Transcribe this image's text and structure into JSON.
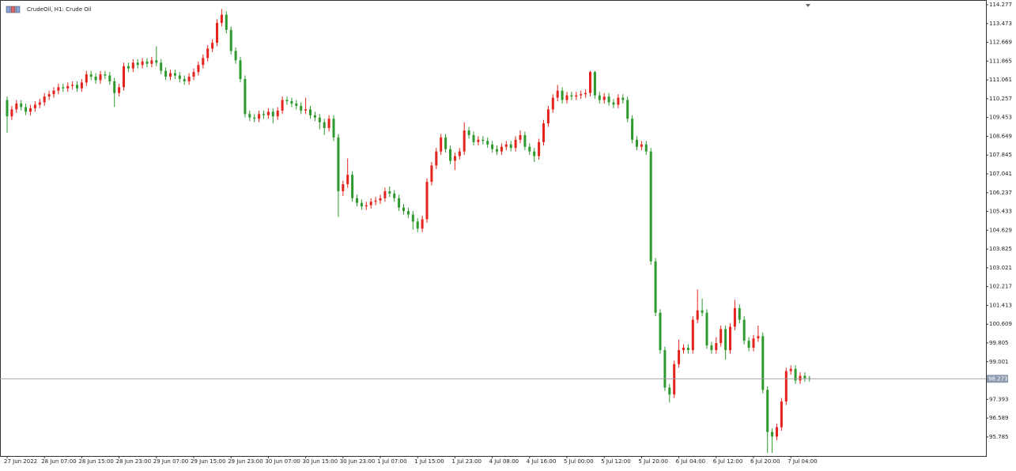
{
  "chart_data": {
    "type": "candlestick",
    "title": "CrudeOil, H1:  Crude Oil",
    "up_color": "#e3231c",
    "down_color": "#2e9a2e",
    "current_price": 98.273,
    "ylim": [
      94.97,
      114.48
    ],
    "yticks": [
      114.277,
      113.473,
      112.669,
      111.865,
      111.061,
      110.257,
      109.453,
      108.649,
      107.845,
      107.041,
      106.237,
      105.433,
      104.629,
      103.825,
      103.021,
      102.217,
      101.413,
      100.609,
      99.805,
      99.001,
      97.393,
      96.589,
      95.785
    ],
    "categories": [
      "27 Jun 2022",
      null,
      null,
      null,
      null,
      null,
      null,
      null,
      "28 Jun 07:00",
      null,
      null,
      null,
      null,
      null,
      null,
      null,
      "28 Jun 15:00",
      null,
      null,
      null,
      null,
      null,
      null,
      null,
      "28 Jun 23:00",
      null,
      null,
      null,
      null,
      null,
      null,
      null,
      "29 Jun 07:00",
      null,
      null,
      null,
      null,
      null,
      null,
      null,
      "29 Jun 15:00",
      null,
      null,
      null,
      null,
      null,
      null,
      null,
      "29 Jun 23:00",
      null,
      null,
      null,
      null,
      null,
      null,
      null,
      "30 Jun 07:00",
      null,
      null,
      null,
      null,
      null,
      null,
      null,
      "30 Jun 15:00",
      null,
      null,
      null,
      null,
      null,
      null,
      null,
      "30 Jun 23:00",
      null,
      null,
      null,
      null,
      null,
      null,
      null,
      "1 Jul 07:00",
      null,
      null,
      null,
      null,
      null,
      null,
      null,
      "1 Jul 15:00",
      null,
      null,
      null,
      null,
      null,
      null,
      null,
      "1 Jul 23:00",
      null,
      null,
      null,
      null,
      null,
      null,
      null,
      "4 Jul 08:00",
      null,
      null,
      null,
      null,
      null,
      null,
      null,
      "4 Jul 16:00",
      null,
      null,
      null,
      null,
      null,
      null,
      null,
      "5 Jul 00:00",
      null,
      null,
      null,
      null,
      null,
      null,
      null,
      "5 Jul 12:00",
      null,
      null,
      null,
      null,
      null,
      null,
      null,
      "5 Jul 20:00",
      null,
      null,
      null,
      null,
      null,
      null,
      null,
      "6 Jul 04:00",
      null,
      null,
      null,
      null,
      null,
      null,
      null,
      "6 Jul 12:00",
      null,
      null,
      null,
      null,
      null,
      null,
      null,
      "6 Jul 20:00",
      null,
      null,
      null,
      null,
      null,
      null,
      null,
      "7 Jul 04:00",
      null,
      null,
      null,
      null
    ],
    "open": [
      110.2,
      109.5,
      109.8,
      110.05,
      109.9,
      109.7,
      109.85,
      110.0,
      110.1,
      110.35,
      110.45,
      110.6,
      110.75,
      110.7,
      110.8,
      110.85,
      110.7,
      110.95,
      111.3,
      111.2,
      111.05,
      111.3,
      111.25,
      111.0,
      110.5,
      110.75,
      111.65,
      111.55,
      111.8,
      111.7,
      111.85,
      111.75,
      111.9,
      111.8,
      111.45,
      111.2,
      111.35,
      111.25,
      111.1,
      111.0,
      111.2,
      111.4,
      111.7,
      112.0,
      112.4,
      112.65,
      113.5,
      113.85,
      113.2,
      112.3,
      111.9,
      111.1,
      109.6,
      109.45,
      109.4,
      109.6,
      109.55,
      109.7,
      109.5,
      109.75,
      110.2,
      110.15,
      110.05,
      109.95,
      109.75,
      109.8,
      109.55,
      109.45,
      109.25,
      109.0,
      109.4,
      108.6,
      106.3,
      106.6,
      107.0,
      106.0,
      105.8,
      105.65,
      105.7,
      105.85,
      105.9,
      106.0,
      106.3,
      106.2,
      106.0,
      105.6,
      105.45,
      105.3,
      105.0,
      104.7,
      105.1,
      106.7,
      107.4,
      108.0,
      108.6,
      108.1,
      107.6,
      107.8,
      108.0,
      108.9,
      108.7,
      108.4,
      108.5,
      108.45,
      108.3,
      108.1,
      108.0,
      108.2,
      108.3,
      108.15,
      108.5,
      108.7,
      108.2,
      108.0,
      107.8,
      108.4,
      109.2,
      109.8,
      110.3,
      110.6,
      110.2,
      110.4,
      110.35,
      110.4,
      110.45,
      110.5,
      111.4,
      110.4,
      110.2,
      110.35,
      110.1,
      110.0,
      110.3,
      110.2,
      109.4,
      108.5,
      108.2,
      108.3,
      108.0,
      103.3,
      101.1,
      99.5,
      97.9,
      97.6,
      98.9,
      99.5,
      99.6,
      99.5,
      100.8,
      101.2,
      101.1,
      99.7,
      99.5,
      99.8,
      100.4,
      99.5,
      100.5,
      101.3,
      100.8,
      99.9,
      99.6,
      100.0,
      100.1,
      97.8,
      96.0,
      95.8,
      96.2,
      97.3,
      98.6,
      98.7,
      98.2,
      98.4,
      98.3
    ],
    "high": [
      110.35,
      109.95,
      110.2,
      110.2,
      110.05,
      110.0,
      110.15,
      110.25,
      110.5,
      110.6,
      110.75,
      110.9,
      110.9,
      110.95,
      111.0,
      111.0,
      111.1,
      111.45,
      111.45,
      111.35,
      111.45,
      111.45,
      111.4,
      111.15,
      110.9,
      111.8,
      111.8,
      111.95,
      111.95,
      112.0,
      112.0,
      112.05,
      112.5,
      111.95,
      111.6,
      111.5,
      111.5,
      111.4,
      111.25,
      111.35,
      111.55,
      111.85,
      112.15,
      112.55,
      112.8,
      113.65,
      114.1,
      114.0,
      113.35,
      112.45,
      112.05,
      111.25,
      109.75,
      109.6,
      109.75,
      109.75,
      109.85,
      109.85,
      109.9,
      110.35,
      110.35,
      110.3,
      110.2,
      110.1,
      110.3,
      109.95,
      109.7,
      109.6,
      109.4,
      109.55,
      109.55,
      108.75,
      106.75,
      107.7,
      107.15,
      106.15,
      105.95,
      105.85,
      106.0,
      106.05,
      106.15,
      106.45,
      106.5,
      106.35,
      106.15,
      105.75,
      105.6,
      105.45,
      105.15,
      105.25,
      106.85,
      107.55,
      108.15,
      108.75,
      108.75,
      108.25,
      107.95,
      108.15,
      109.25,
      109.05,
      108.85,
      108.65,
      108.65,
      108.6,
      108.45,
      108.25,
      108.35,
      108.45,
      108.45,
      108.65,
      108.9,
      108.85,
      108.35,
      108.15,
      108.55,
      109.35,
      109.95,
      110.45,
      110.85,
      110.75,
      110.55,
      110.55,
      110.55,
      110.6,
      110.65,
      111.45,
      111.45,
      110.55,
      110.5,
      110.5,
      110.25,
      110.45,
      110.45,
      110.35,
      109.55,
      108.65,
      108.45,
      108.45,
      108.15,
      103.45,
      101.25,
      99.65,
      98.05,
      99.05,
      99.95,
      99.75,
      99.75,
      100.95,
      102.1,
      101.7,
      101.25,
      99.85,
      100.05,
      100.55,
      100.55,
      100.65,
      101.65,
      101.45,
      100.95,
      100.05,
      100.15,
      100.55,
      100.25,
      97.95,
      96.15,
      96.35,
      97.45,
      98.75,
      98.85,
      98.85,
      98.55,
      98.55,
      98.4
    ],
    "low": [
      108.8,
      109.35,
      109.65,
      109.75,
      109.55,
      109.55,
      109.7,
      109.85,
      109.95,
      110.2,
      110.3,
      110.45,
      110.55,
      110.55,
      110.65,
      110.55,
      110.55,
      110.8,
      111.05,
      110.9,
      110.9,
      111.1,
      110.85,
      109.9,
      110.35,
      110.6,
      111.4,
      111.4,
      111.55,
      111.55,
      111.6,
      111.6,
      111.65,
      111.3,
      111.05,
      111.05,
      111.1,
      110.95,
      110.85,
      110.85,
      111.05,
      111.25,
      111.55,
      111.85,
      112.25,
      112.5,
      113.35,
      113.05,
      112.15,
      111.75,
      110.95,
      109.45,
      109.3,
      109.25,
      109.25,
      109.4,
      109.4,
      109.2,
      109.35,
      109.6,
      110.0,
      109.9,
      109.8,
      109.6,
      109.6,
      109.4,
      109.3,
      108.95,
      108.7,
      108.85,
      108.45,
      105.2,
      106.1,
      106.45,
      105.85,
      105.65,
      105.5,
      105.5,
      105.55,
      105.7,
      105.75,
      105.85,
      106.05,
      105.85,
      105.45,
      105.3,
      105.15,
      104.65,
      104.55,
      104.55,
      104.95,
      106.55,
      107.25,
      107.85,
      107.95,
      107.45,
      107.2,
      107.65,
      107.85,
      108.55,
      108.25,
      108.25,
      108.3,
      108.15,
      107.95,
      107.85,
      107.85,
      108.05,
      108.0,
      108.0,
      108.35,
      108.05,
      107.85,
      107.55,
      107.65,
      108.25,
      109.05,
      109.65,
      110.15,
      110.05,
      110.05,
      110.2,
      110.2,
      110.25,
      110.3,
      110.35,
      110.25,
      110.05,
      110.05,
      109.95,
      109.85,
      109.85,
      110.05,
      109.25,
      108.35,
      108.05,
      108.05,
      107.85,
      103.15,
      100.95,
      99.35,
      97.75,
      97.25,
      97.45,
      98.75,
      99.35,
      99.35,
      99.35,
      100.65,
      100.95,
      99.55,
      99.35,
      99.35,
      99.65,
      99.1,
      99.35,
      100.35,
      100.65,
      99.75,
      99.45,
      99.45,
      99.85,
      97.65,
      95.1,
      95.1,
      95.65,
      96.05,
      97.15,
      98.45,
      98.05,
      98.05,
      98.15,
      98.15
    ],
    "close": [
      109.5,
      109.8,
      110.05,
      109.9,
      109.7,
      109.85,
      110.0,
      110.1,
      110.35,
      110.45,
      110.6,
      110.75,
      110.7,
      110.8,
      110.85,
      110.7,
      110.95,
      111.3,
      111.2,
      111.05,
      111.3,
      111.25,
      111.0,
      110.5,
      110.75,
      111.65,
      111.55,
      111.8,
      111.7,
      111.85,
      111.75,
      111.9,
      111.8,
      111.45,
      111.2,
      111.35,
      111.25,
      111.1,
      111.0,
      111.2,
      111.4,
      111.7,
      112.0,
      112.4,
      112.65,
      113.5,
      113.85,
      113.2,
      112.3,
      111.9,
      111.1,
      109.6,
      109.45,
      109.4,
      109.6,
      109.55,
      109.7,
      109.5,
      109.75,
      110.2,
      110.15,
      110.05,
      109.95,
      109.75,
      109.8,
      109.55,
      109.45,
      109.25,
      109.0,
      109.4,
      108.6,
      106.3,
      106.6,
      107.0,
      106.0,
      105.8,
      105.65,
      105.7,
      105.85,
      105.9,
      106.0,
      106.3,
      106.2,
      106.0,
      105.6,
      105.45,
      105.3,
      105.0,
      104.7,
      105.1,
      106.7,
      107.4,
      108.0,
      108.6,
      108.1,
      107.6,
      107.8,
      108.0,
      108.9,
      108.7,
      108.4,
      108.5,
      108.45,
      108.3,
      108.1,
      108.0,
      108.2,
      108.3,
      108.15,
      108.5,
      108.7,
      108.2,
      108.0,
      107.8,
      108.4,
      109.2,
      109.8,
      110.3,
      110.6,
      110.2,
      110.4,
      110.35,
      110.4,
      110.45,
      110.5,
      111.4,
      110.4,
      110.2,
      110.35,
      110.1,
      110.0,
      110.3,
      110.2,
      109.4,
      108.5,
      108.2,
      108.3,
      108.0,
      103.3,
      101.1,
      99.5,
      97.9,
      97.6,
      98.9,
      99.5,
      99.6,
      99.5,
      100.8,
      101.2,
      101.1,
      99.7,
      99.5,
      99.8,
      100.4,
      99.5,
      100.5,
      101.3,
      100.8,
      99.9,
      99.6,
      100.0,
      100.1,
      97.8,
      96.0,
      95.8,
      96.2,
      97.3,
      98.6,
      98.7,
      98.2,
      98.4,
      98.3,
      98.27
    ]
  }
}
